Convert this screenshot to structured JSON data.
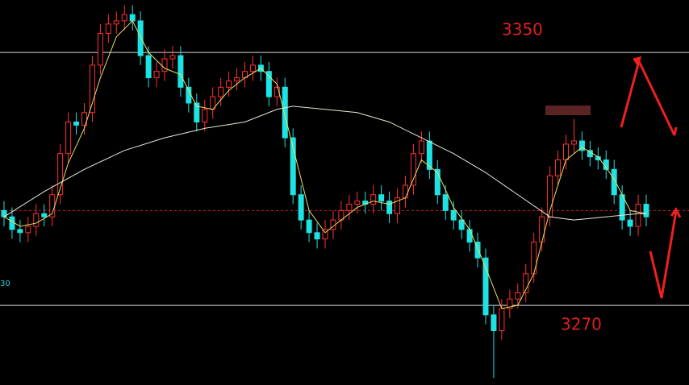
{
  "chart_data": {
    "type": "candlestick",
    "ylim": [
      3244.8,
      3366.6
    ],
    "up_color": "#ff3030",
    "down_color": "#1ee3e3",
    "open": [
      3300,
      3298,
      3294,
      3293,
      3295,
      3299,
      3298,
      3305,
      3318,
      3328,
      3327,
      3331,
      3346,
      3356,
      3359,
      3360,
      3362,
      3360,
      3349,
      3342,
      3344,
      3348,
      3349,
      3339,
      3334,
      3328,
      3332,
      3336,
      3339,
      3341,
      3342,
      3344,
      3346,
      3344,
      3336,
      3339,
      3323,
      3305,
      3297,
      3293,
      3291,
      3294,
      3297,
      3300,
      3302,
      3303,
      3302,
      3305,
      3303,
      3299,
      3304,
      3308,
      3318,
      3322,
      3313,
      3305,
      3300,
      3297,
      3294,
      3290,
      3285,
      3267,
      3262,
      3269,
      3272,
      3274,
      3280,
      3290,
      3298,
      3311,
      3316,
      3321,
      3322,
      3319,
      3317,
      3316,
      3313,
      3305,
      3297,
      3295,
      3302
    ],
    "high": [
      3303,
      3301,
      3297,
      3298,
      3302,
      3302,
      3308,
      3321,
      3331,
      3331,
      3334,
      3349,
      3359,
      3362,
      3363,
      3365,
      3365,
      3363,
      3352,
      3347,
      3351,
      3352,
      3352,
      3342,
      3337,
      3335,
      3339,
      3342,
      3344,
      3345,
      3347,
      3349,
      3349,
      3347,
      3342,
      3342,
      3326,
      3308,
      3300,
      3296,
      3297,
      3300,
      3303,
      3305,
      3306,
      3306,
      3308,
      3308,
      3306,
      3307,
      3311,
      3321,
      3325,
      3325,
      3316,
      3308,
      3303,
      3300,
      3297,
      3293,
      3288,
      3270,
      3272,
      3275,
      3277,
      3283,
      3293,
      3301,
      3314,
      3319,
      3324,
      3329,
      3325,
      3322,
      3320,
      3319,
      3316,
      3308,
      3300,
      3305,
      3305
    ],
    "low": [
      3295,
      3291,
      3290,
      3290,
      3292,
      3295,
      3295,
      3302,
      3315,
      3324,
      3324,
      3328,
      3343,
      3353,
      3356,
      3357,
      3357,
      3346,
      3339,
      3339,
      3341,
      3345,
      3336,
      3331,
      3325,
      3325,
      3329,
      3333,
      3336,
      3338,
      3339,
      3341,
      3341,
      3333,
      3333,
      3320,
      3302,
      3294,
      3290,
      3288,
      3288,
      3291,
      3294,
      3297,
      3299,
      3299,
      3299,
      3300,
      3296,
      3296,
      3301,
      3305,
      3315,
      3310,
      3302,
      3297,
      3294,
      3291,
      3287,
      3282,
      3264,
      3247,
      3259,
      3266,
      3269,
      3271,
      3277,
      3287,
      3295,
      3308,
      3313,
      3318,
      3316,
      3314,
      3313,
      3310,
      3302,
      3294,
      3292,
      3292,
      3295
    ],
    "close": [
      3298,
      3294,
      3293,
      3295,
      3299,
      3298,
      3305,
      3318,
      3328,
      3327,
      3331,
      3346,
      3356,
      3359,
      3360,
      3362,
      3360,
      3349,
      3342,
      3344,
      3348,
      3349,
      3339,
      3334,
      3328,
      3332,
      3336,
      3339,
      3341,
      3342,
      3344,
      3346,
      3344,
      3336,
      3339,
      3323,
      3305,
      3297,
      3293,
      3291,
      3294,
      3297,
      3300,
      3302,
      3303,
      3302,
      3305,
      3303,
      3299,
      3304,
      3308,
      3318,
      3322,
      3313,
      3305,
      3300,
      3297,
      3294,
      3290,
      3285,
      3267,
      3262,
      3269,
      3272,
      3274,
      3280,
      3290,
      3298,
      3311,
      3316,
      3321,
      3322,
      3319,
      3317,
      3316,
      3313,
      3305,
      3297,
      3295,
      3302,
      3298
    ],
    "series": [
      {
        "color": "#e8e060",
        "x": [
          0,
          2,
          4,
          6,
          8,
          10,
          12,
          14,
          16,
          18,
          20,
          22,
          24,
          26,
          28,
          30,
          32,
          34,
          36,
          38,
          40,
          42,
          44,
          46,
          48,
          50,
          52,
          54,
          56,
          58,
          60,
          62,
          64,
          66,
          68,
          70,
          72,
          74,
          76,
          78,
          80
        ],
        "values": [
          3298,
          3295,
          3296,
          3299,
          3315,
          3326,
          3342,
          3355,
          3360,
          3350,
          3345,
          3343,
          3333,
          3332,
          3338,
          3342,
          3345,
          3340,
          3320,
          3300,
          3293,
          3297,
          3301,
          3303,
          3302,
          3304,
          3316,
          3312,
          3301,
          3294,
          3282,
          3269,
          3270,
          3280,
          3300,
          3316,
          3320,
          3317,
          3310,
          3300,
          3299
        ]
      },
      {
        "color": "#e8e8d8",
        "x": [
          0,
          5,
          10,
          15,
          20,
          25,
          30,
          34,
          36,
          40,
          44,
          48,
          52,
          56,
          60,
          64,
          68,
          71,
          75,
          79,
          80
        ],
        "values": [
          3298,
          3306,
          3313,
          3319,
          3323,
          3326,
          3328,
          3332,
          3333,
          3332,
          3331,
          3328,
          3323,
          3318,
          3312,
          3305,
          3298,
          3297,
          3298,
          3299,
          3299
        ]
      }
    ],
    "last_price": 3300,
    "levels": [
      3350,
      3270
    ],
    "left_label": "30"
  }
}
